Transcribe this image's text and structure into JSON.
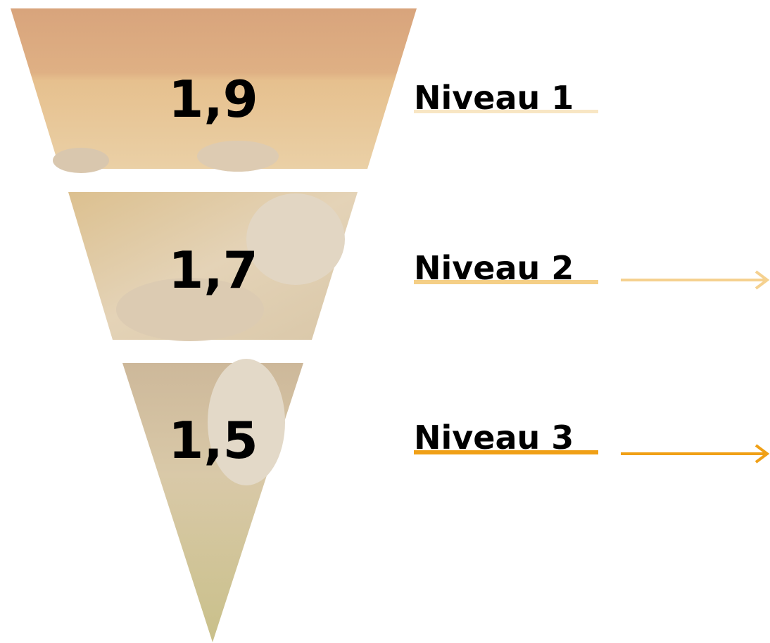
{
  "levels": [
    {
      "value": "1,9",
      "label": "Niveau 1"
    },
    {
      "value": "1,7",
      "label": "Niveau 2"
    },
    {
      "value": "1,5",
      "label": "Niveau 3"
    }
  ]
}
